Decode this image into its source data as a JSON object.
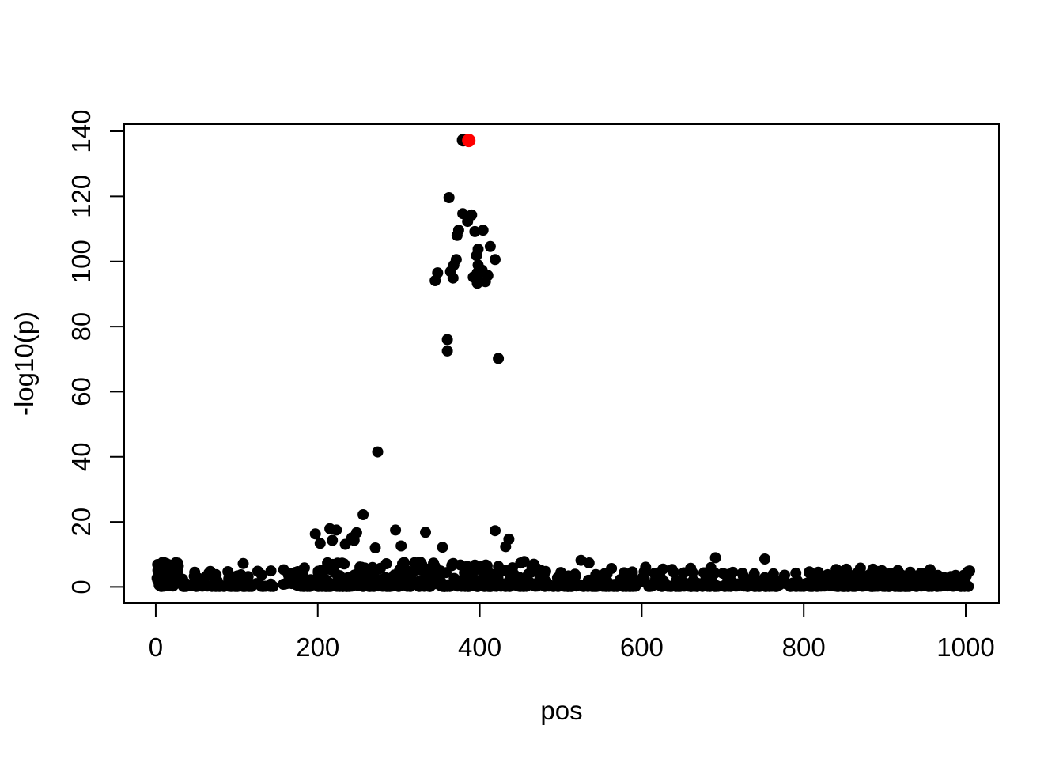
{
  "figure": {
    "background": "#FFFFFF",
    "point_color": "#000000",
    "highlight_color": "#FF0000",
    "axis_color": "#000000"
  },
  "chart_data": {
    "type": "scatter",
    "title": "",
    "xlabel": "pos",
    "ylabel": "-log10(p)",
    "xlim": [
      -39,
      1041
    ],
    "ylim": [
      -5,
      142.2
    ],
    "x_ticks": [
      0,
      200,
      400,
      600,
      800,
      1000
    ],
    "y_ticks": [
      0,
      20,
      40,
      60,
      80,
      100,
      120,
      140
    ],
    "grid": false,
    "legend": "none",
    "marker": "filled-circle",
    "top_points": [
      {
        "x": 379.5,
        "y": 137.3,
        "color": "#000000",
        "r": 8
      },
      {
        "x": 386.5,
        "y": 137.2,
        "color": "#FF0000",
        "r": 8.5
      }
    ],
    "notable_points": [
      [
        362,
        119.6
      ],
      [
        379,
        114.7
      ],
      [
        390,
        114.3
      ],
      [
        385,
        112.3
      ],
      [
        374,
        109.6
      ],
      [
        394,
        109.2
      ],
      [
        404,
        109.6
      ],
      [
        372,
        108.0
      ],
      [
        413,
        104.6
      ],
      [
        398,
        103.8
      ],
      [
        396,
        101.8
      ],
      [
        419,
        100.6
      ],
      [
        371,
        100.6
      ],
      [
        368,
        98.9
      ],
      [
        398,
        98.9
      ],
      [
        364,
        96.9
      ],
      [
        348,
        96.5
      ],
      [
        397,
        96.5
      ],
      [
        410,
        95.7
      ],
      [
        367,
        94.9
      ],
      [
        392,
        95.2
      ],
      [
        397,
        94.5
      ],
      [
        345,
        94.1
      ],
      [
        403,
        97.3
      ],
      [
        407,
        93.8
      ],
      [
        397,
        93.3
      ],
      [
        360,
        76.0
      ],
      [
        360,
        72.5
      ],
      [
        423,
        70.2
      ],
      [
        274,
        41.5
      ],
      [
        256,
        22.2
      ],
      [
        197,
        16.3
      ],
      [
        203,
        13.4
      ],
      [
        215,
        17.9
      ],
      [
        223,
        17.5
      ],
      [
        218,
        14.3
      ],
      [
        234,
        13.1
      ],
      [
        242,
        15.1
      ],
      [
        248,
        16.7
      ],
      [
        245,
        14.3
      ],
      [
        271,
        12.0
      ],
      [
        296,
        17.5
      ],
      [
        303,
        12.6
      ],
      [
        333,
        16.8
      ],
      [
        354,
        12.2
      ],
      [
        419,
        17.3
      ],
      [
        436,
        14.7
      ],
      [
        432,
        12.4
      ],
      [
        108,
        7.2
      ],
      [
        394,
        6.7
      ],
      [
        455,
        7.8
      ],
      [
        525,
        8.2
      ],
      [
        535,
        7.4
      ],
      [
        691,
        9.0
      ],
      [
        752,
        8.6
      ],
      [
        840,
        5.4
      ],
      [
        870,
        5.8
      ]
    ],
    "point_radius": 7,
    "baseline_spec": {
      "seed": 20,
      "y_min": 0.15,
      "segments": [
        {
          "x0": 1,
          "x1": 30,
          "n": 60,
          "ymax": 7.5,
          "power": 1.6
        },
        {
          "x0": 30,
          "x1": 200,
          "n": 115,
          "ymax": 6.0,
          "power": 3.0
        },
        {
          "x0": 200,
          "x1": 330,
          "n": 150,
          "ymax": 7.5,
          "power": 2.6
        },
        {
          "x0": 330,
          "x1": 470,
          "n": 165,
          "ymax": 7.5,
          "power": 2.6
        },
        {
          "x0": 470,
          "x1": 700,
          "n": 165,
          "ymax": 6.0,
          "power": 3.0
        },
        {
          "x0": 700,
          "x1": 845,
          "n": 115,
          "ymax": 5.0,
          "power": 2.8
        },
        {
          "x0": 845,
          "x1": 1005,
          "n": 175,
          "ymax": 5.5,
          "power": 2.5
        }
      ]
    }
  }
}
